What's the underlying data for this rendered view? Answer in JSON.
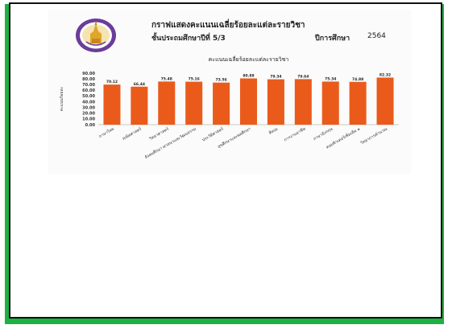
{
  "document": {
    "title": "กราฟแสดงคะแนนเฉลี่ยร้อยละแต่ละรายวิชา",
    "grade": "ชั้นประถมศึกษาปีที่ 5/3",
    "year_label": "ปีการศึกษา",
    "year": "2564"
  },
  "colors": {
    "frame_green": "#1db142",
    "frame_black": "#111111",
    "bar": "#ea5b1b",
    "seal_purple": "#6a3d9a",
    "seal_gold": "#e0a52a"
  },
  "chart_data": {
    "type": "bar",
    "title": "คะแนนเฉลี่ยร้อยละแต่ละรายวิชา",
    "xlabel": "",
    "ylabel": "คะแนนร้อยละ",
    "ylim": [
      0,
      90
    ],
    "y_ticks": [
      "0.00",
      "10.00",
      "20.00",
      "30.00",
      "40.00",
      "50.00",
      "60.00",
      "70.00",
      "80.00",
      "90.00"
    ],
    "grid": false,
    "categories": [
      "ภาษาไทย",
      "คณิตศาสตร์",
      "วิทยาศาสตร์",
      "สังคมศึกษา ศาสนาและวัฒนธรรม",
      "ประวัติศาสตร์",
      "สุขศึกษาและพลศึกษา",
      "ศิลปะ",
      "การงานอาชีพ",
      "ภาษาอังกฤษ",
      "คอมพิวเตอร์เพิ่มเติม ๑",
      "วิทยาการคำนวณ"
    ],
    "values": [
      70.12,
      66.44,
      75.48,
      75.16,
      73.56,
      80.88,
      79.34,
      79.64,
      75.34,
      74.88,
      82.32
    ],
    "value_labels": [
      "70.12",
      "66.44",
      "75.48",
      "75.16",
      "73.56",
      "80.88",
      "79.34",
      "79.64",
      "75.34",
      "74.88",
      "82.32"
    ]
  }
}
